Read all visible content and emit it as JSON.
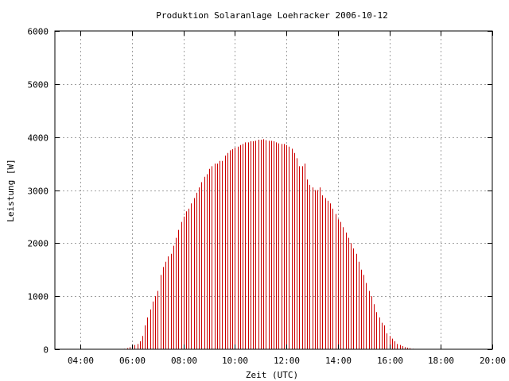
{
  "chart_data": {
    "type": "bar",
    "title": "Produktion Solaranlage Loehracker 2006-10-12",
    "xlabel": "Zeit (UTC)",
    "ylabel": "Leistung [W]",
    "x_unit": "hours (UTC)",
    "xlim": [
      3.0,
      20.0
    ],
    "ylim": [
      0,
      6000
    ],
    "x_ticks": [
      {
        "value": 4,
        "label": "04:00"
      },
      {
        "value": 6,
        "label": "06:00"
      },
      {
        "value": 8,
        "label": "08:00"
      },
      {
        "value": 10,
        "label": "10:00"
      },
      {
        "value": 12,
        "label": "12:00"
      },
      {
        "value": 14,
        "label": "14:00"
      },
      {
        "value": 16,
        "label": "16:00"
      },
      {
        "value": 18,
        "label": "18:00"
      },
      {
        "value": 20,
        "label": "20:00"
      }
    ],
    "y_ticks": [
      {
        "value": 0,
        "label": "0"
      },
      {
        "value": 1000,
        "label": "1000"
      },
      {
        "value": 2000,
        "label": "2000"
      },
      {
        "value": 3000,
        "label": "3000"
      },
      {
        "value": 4000,
        "label": "4000"
      },
      {
        "value": 5000,
        "label": "5000"
      },
      {
        "value": 6000,
        "label": "6000"
      }
    ],
    "grid": true,
    "bar_color": "#cc0000",
    "x": [
      5.7,
      5.8,
      5.9,
      6.0,
      6.1,
      6.2,
      6.3,
      6.4,
      6.5,
      6.6,
      6.7,
      6.8,
      6.9,
      7.0,
      7.1,
      7.2,
      7.3,
      7.4,
      7.5,
      7.6,
      7.7,
      7.8,
      7.9,
      8.0,
      8.1,
      8.2,
      8.3,
      8.4,
      8.5,
      8.6,
      8.7,
      8.8,
      8.9,
      9.0,
      9.1,
      9.2,
      9.3,
      9.4,
      9.5,
      9.6,
      9.7,
      9.8,
      9.9,
      10.0,
      10.1,
      10.2,
      10.3,
      10.4,
      10.5,
      10.6,
      10.7,
      10.8,
      10.9,
      11.0,
      11.1,
      11.2,
      11.3,
      11.4,
      11.5,
      11.6,
      11.7,
      11.8,
      11.9,
      12.0,
      12.1,
      12.2,
      12.3,
      12.4,
      12.5,
      12.6,
      12.7,
      12.8,
      12.9,
      13.0,
      13.1,
      13.2,
      13.3,
      13.4,
      13.5,
      13.6,
      13.7,
      13.8,
      13.9,
      14.0,
      14.1,
      14.2,
      14.3,
      14.4,
      14.5,
      14.6,
      14.7,
      14.8,
      14.9,
      15.0,
      15.1,
      15.2,
      15.3,
      15.4,
      15.5,
      15.6,
      15.7,
      15.8,
      15.9,
      16.0,
      16.1,
      16.2,
      16.3,
      16.4,
      16.5,
      16.6,
      16.7,
      16.8,
      16.9,
      17.0
    ],
    "values": [
      10,
      20,
      40,
      60,
      80,
      100,
      150,
      250,
      450,
      600,
      750,
      900,
      1000,
      1100,
      1400,
      1550,
      1650,
      1750,
      1800,
      1950,
      2100,
      2250,
      2400,
      2500,
      2600,
      2650,
      2750,
      2850,
      2950,
      3050,
      3150,
      3250,
      3300,
      3400,
      3450,
      3500,
      3500,
      3550,
      3550,
      3650,
      3700,
      3750,
      3770,
      3800,
      3820,
      3850,
      3870,
      3900,
      3900,
      3920,
      3920,
      3930,
      3950,
      3950,
      3960,
      3940,
      3930,
      3930,
      3920,
      3900,
      3880,
      3870,
      3870,
      3850,
      3820,
      3780,
      3700,
      3600,
      3450,
      3450,
      3500,
      3200,
      3100,
      3050,
      3000,
      3000,
      3050,
      2900,
      2850,
      2800,
      2750,
      2650,
      2550,
      2450,
      2400,
      2300,
      2200,
      2100,
      2000,
      1900,
      1800,
      1650,
      1500,
      1400,
      1250,
      1100,
      1000,
      850,
      700,
      600,
      500,
      450,
      300,
      250,
      200,
      150,
      100,
      80,
      60,
      40,
      30,
      20,
      10,
      5
    ]
  }
}
